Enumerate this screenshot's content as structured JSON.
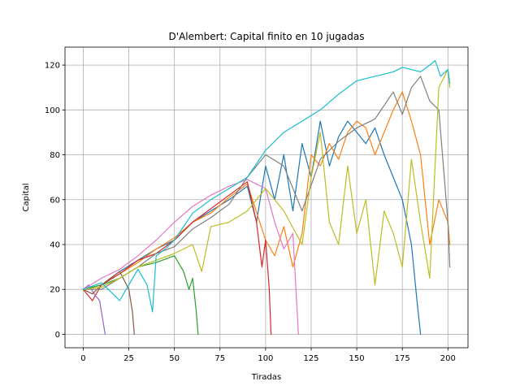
{
  "chart_data": {
    "type": "line",
    "title": "D'Alembert: Capital finito en 10 jugadas",
    "xlabel": "Tiradas",
    "ylabel": "Capital",
    "xlim": [
      -10,
      211
    ],
    "ylim": [
      -6,
      128
    ],
    "xticks": [
      0,
      25,
      50,
      75,
      100,
      125,
      150,
      175,
      200
    ],
    "yticks": [
      0,
      20,
      40,
      60,
      80,
      100,
      120
    ],
    "grid": true,
    "series": [
      {
        "color": "#1f77b4",
        "x": [
          0,
          10,
          20,
          30,
          40,
          50,
          60,
          70,
          80,
          90,
          95,
          100,
          105,
          110,
          115,
          120,
          125,
          130,
          135,
          140,
          145,
          150,
          155,
          160,
          165,
          170,
          175,
          180,
          183,
          185
        ],
        "values": [
          20,
          22,
          28,
          33,
          38,
          42,
          50,
          55,
          60,
          66,
          50,
          75,
          60,
          80,
          55,
          85,
          70,
          95,
          75,
          88,
          95,
          90,
          85,
          92,
          80,
          70,
          60,
          40,
          15,
          0
        ]
      },
      {
        "color": "#ff7f0e",
        "x": [
          0,
          10,
          20,
          30,
          40,
          50,
          60,
          70,
          80,
          90,
          100,
          105,
          110,
          115,
          120,
          125,
          130,
          135,
          140,
          145,
          150,
          155,
          160,
          165,
          170,
          175,
          180,
          185,
          190,
          195,
          200,
          201
        ],
        "values": [
          20,
          22,
          27,
          32,
          38,
          43,
          50,
          54,
          61,
          67,
          42,
          35,
          48,
          30,
          45,
          80,
          75,
          85,
          78,
          90,
          95,
          92,
          80,
          90,
          100,
          108,
          95,
          80,
          40,
          60,
          50,
          40
        ]
      },
      {
        "color": "#2ca02c",
        "x": [
          0,
          10,
          20,
          30,
          40,
          50,
          55,
          58,
          60,
          62,
          63
        ],
        "values": [
          20,
          22,
          25,
          30,
          32,
          35,
          28,
          20,
          25,
          10,
          0
        ]
      },
      {
        "color": "#d62728",
        "x": [
          0,
          5,
          10,
          20,
          30,
          40,
          50,
          60,
          70,
          80,
          90,
          95,
          98,
          100,
          102,
          103
        ],
        "values": [
          20,
          15,
          22,
          27,
          33,
          36,
          42,
          50,
          56,
          62,
          68,
          50,
          30,
          42,
          20,
          0
        ]
      },
      {
        "color": "#9467bd",
        "x": [
          0,
          3,
          6,
          9,
          12
        ],
        "values": [
          20,
          22,
          18,
          15,
          0
        ]
      },
      {
        "color": "#8c564b",
        "x": [
          0,
          5,
          10,
          15,
          20,
          25,
          27,
          28
        ],
        "values": [
          20,
          18,
          22,
          25,
          28,
          20,
          10,
          0
        ]
      },
      {
        "color": "#e377c2",
        "x": [
          0,
          10,
          20,
          30,
          40,
          50,
          60,
          70,
          80,
          90,
          100,
          105,
          110,
          115,
          117,
          118
        ],
        "values": [
          20,
          25,
          29,
          35,
          42,
          50,
          57,
          62,
          66,
          69,
          65,
          50,
          38,
          45,
          15,
          0
        ]
      },
      {
        "color": "#7f7f7f",
        "x": [
          0,
          10,
          20,
          30,
          40,
          50,
          60,
          70,
          80,
          90,
          100,
          110,
          120,
          130,
          140,
          150,
          160,
          170,
          175,
          180,
          185,
          190,
          195,
          200,
          201
        ],
        "values": [
          20,
          20,
          25,
          30,
          36,
          39,
          47,
          52,
          58,
          70,
          80,
          75,
          55,
          78,
          86,
          92,
          96,
          108,
          98,
          110,
          115,
          104,
          100,
          50,
          30
        ]
      },
      {
        "color": "#bcbd22",
        "x": [
          0,
          10,
          20,
          30,
          40,
          50,
          60,
          65,
          70,
          80,
          90,
          100,
          110,
          120,
          125,
          130,
          135,
          140,
          145,
          150,
          155,
          160,
          165,
          170,
          175,
          180,
          185,
          190,
          195,
          200,
          201
        ],
        "values": [
          20,
          21,
          25,
          30,
          33,
          36,
          40,
          28,
          48,
          50,
          55,
          65,
          55,
          40,
          70,
          90,
          50,
          40,
          75,
          45,
          60,
          22,
          55,
          45,
          30,
          78,
          50,
          25,
          110,
          118,
          110
        ]
      },
      {
        "color": "#17becf",
        "x": [
          0,
          10,
          20,
          30,
          35,
          38,
          40,
          45,
          50,
          60,
          70,
          80,
          90,
          100,
          110,
          120,
          130,
          140,
          150,
          160,
          170,
          175,
          180,
          185,
          190,
          193,
          196,
          200,
          201
        ],
        "values": [
          20,
          23,
          15,
          29,
          22,
          10,
          35,
          38,
          42,
          54,
          60,
          65,
          70,
          82,
          90,
          95,
          100,
          107,
          113,
          115,
          117,
          119,
          118,
          117,
          120,
          122,
          115,
          118,
          112
        ]
      }
    ]
  }
}
